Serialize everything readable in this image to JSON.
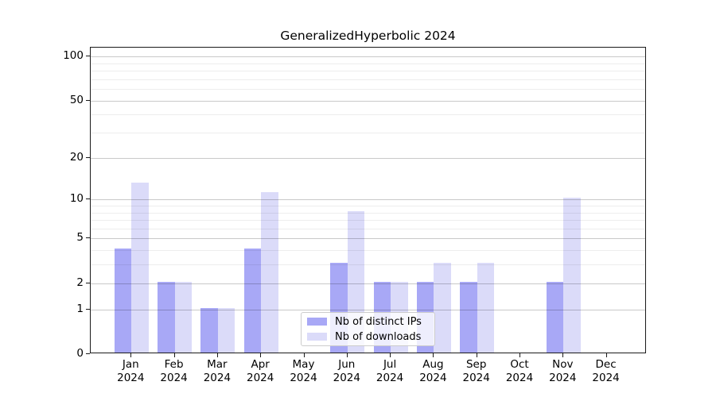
{
  "title": "GeneralizedHyperbolic 2024",
  "legend": {
    "items": [
      {
        "label": "Nb of distinct IPs",
        "color": "#a8a8f6"
      },
      {
        "label": "Nb of downloads",
        "color": "#dbdbf9"
      }
    ]
  },
  "chart_data": {
    "type": "bar",
    "title": "GeneralizedHyperbolic 2024",
    "categories": [
      "Jan 2024",
      "Feb 2024",
      "Mar 2024",
      "Apr 2024",
      "May 2024",
      "Jun 2024",
      "Jul 2024",
      "Aug 2024",
      "Sep 2024",
      "Oct 2024",
      "Nov 2024",
      "Dec 2024"
    ],
    "series": [
      {
        "name": "Nb of distinct IPs",
        "color": "#a8a8f6",
        "values": [
          4,
          2,
          1,
          4,
          0,
          3,
          2,
          2,
          2,
          0,
          2,
          0
        ]
      },
      {
        "name": "Nb of downloads",
        "color": "#dbdbf9",
        "values": [
          13,
          2,
          1,
          11,
          0,
          8,
          2,
          3,
          3,
          0,
          10,
          0
        ]
      }
    ],
    "xlabel": "",
    "ylabel": "",
    "ylim": [
      0,
      100
    ],
    "y_scale": "log10(1+x)",
    "y_major_ticks": [
      0,
      1,
      2,
      5,
      10,
      20,
      50,
      100
    ],
    "y_minor_gridlines": [
      3,
      4,
      6,
      7,
      8,
      9,
      30,
      40,
      60,
      70,
      80,
      90
    ],
    "grid": "on",
    "grid_major_color": "rgba(0,0,0,0.21)",
    "grid_minor_color": "rgba(0,0,0,0.07)",
    "legend_position": "lower center",
    "bar_group": "paired side-by-side per month"
  }
}
